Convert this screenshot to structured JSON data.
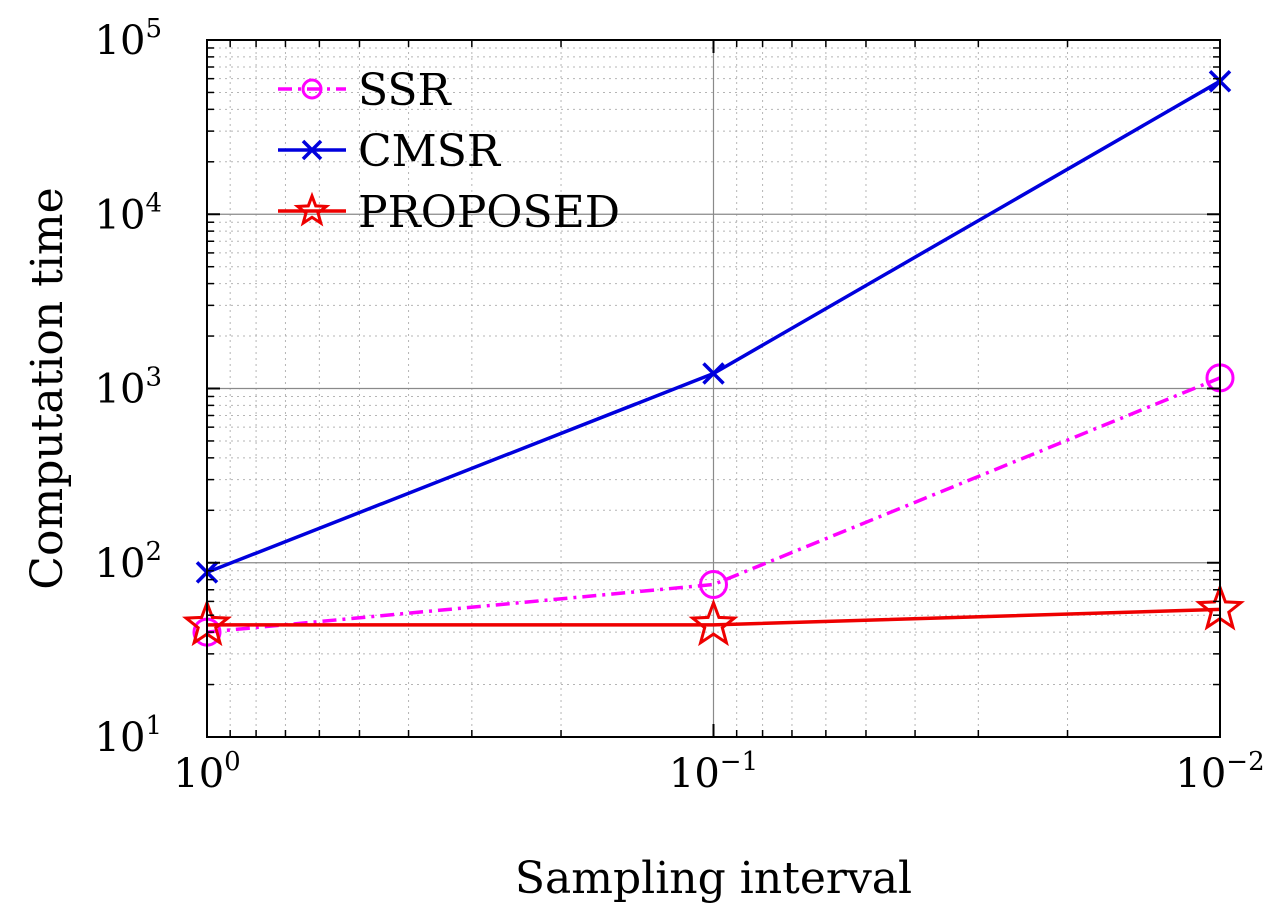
{
  "chart_data": {
    "type": "line",
    "xlabel": "Sampling interval",
    "ylabel": "Computation time",
    "x": [
      1,
      0.1,
      0.01
    ],
    "x_scale": "log",
    "x_reversed": true,
    "y_scale": "log",
    "xlim": [
      1,
      0.01
    ],
    "ylim": [
      10,
      100000
    ],
    "x_ticks": [
      {
        "value": 1,
        "base": "10",
        "exp": "0"
      },
      {
        "value": 0.1,
        "base": "10",
        "exp": "−1"
      },
      {
        "value": 0.01,
        "base": "10",
        "exp": "−2"
      }
    ],
    "y_ticks": [
      {
        "value": 10,
        "base": "10",
        "exp": "1"
      },
      {
        "value": 100,
        "base": "10",
        "exp": "2"
      },
      {
        "value": 1000,
        "base": "10",
        "exp": "3"
      },
      {
        "value": 10000,
        "base": "10",
        "exp": "4"
      },
      {
        "value": 100000,
        "base": "10",
        "exp": "5"
      }
    ],
    "grid": true,
    "legend_position": "top-left",
    "series": [
      {
        "name": "SSR",
        "values": [
          40,
          75,
          1150
        ],
        "color": "#ff00ff",
        "marker": "circle",
        "line_style": "dash-dot"
      },
      {
        "name": "CMSR",
        "values": [
          88,
          1220,
          58000
        ],
        "color": "#0000dd",
        "marker": "x",
        "line_style": "solid"
      },
      {
        "name": "PROPOSED",
        "values": [
          44,
          44,
          54
        ],
        "color": "#ee0000",
        "marker": "star",
        "line_style": "solid"
      }
    ]
  }
}
